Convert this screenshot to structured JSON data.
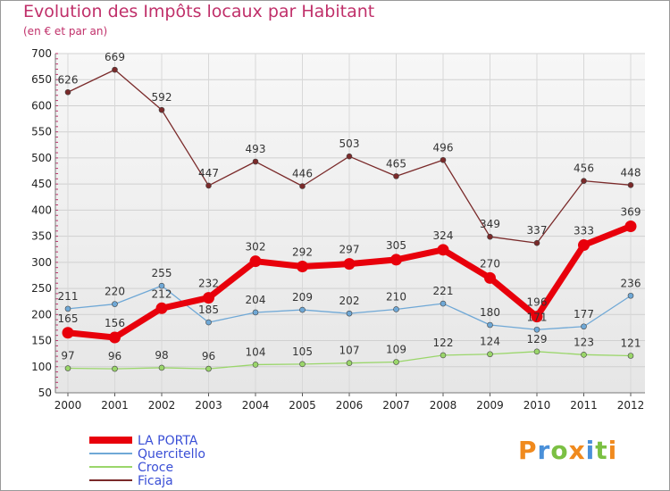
{
  "title": "Evolution des Impôts locaux par Habitant",
  "subtitle": "(en € et par an)",
  "logo_text": "Proxiti",
  "chart_data": {
    "type": "line",
    "x": [
      "2000",
      "2001",
      "2002",
      "2003",
      "2004",
      "2005",
      "2006",
      "2007",
      "2008",
      "2009",
      "2010",
      "2011",
      "2012"
    ],
    "ylim": [
      50,
      700
    ],
    "yticks": [
      50,
      100,
      150,
      200,
      250,
      300,
      350,
      400,
      450,
      500,
      550,
      600,
      650,
      700
    ],
    "grid": true,
    "legend_position": "bottom-left",
    "series": [
      {
        "name": "LA PORTA",
        "color": "#e8000b",
        "values": [
          165,
          156,
          212,
          232,
          302,
          292,
          297,
          305,
          324,
          270,
          196,
          333,
          369
        ]
      },
      {
        "name": "Quercitello",
        "color": "#6fa8d6",
        "values": [
          211,
          220,
          255,
          185,
          204,
          209,
          202,
          210,
          221,
          180,
          171,
          177,
          236
        ]
      },
      {
        "name": "Croce",
        "color": "#9ad66a",
        "values": [
          97,
          96,
          98,
          96,
          104,
          105,
          107,
          109,
          122,
          124,
          129,
          123,
          121
        ]
      },
      {
        "name": "Ficaja",
        "color": "#7a2a2a",
        "values": [
          626,
          669,
          592,
          447,
          493,
          446,
          503,
          465,
          496,
          349,
          337,
          456,
          448
        ]
      }
    ],
    "value_labels": {
      "LA PORTA": [
        "165",
        "156",
        "212",
        "232",
        "302",
        "292",
        "297",
        "305",
        "324",
        "270",
        "196",
        "333",
        "369"
      ],
      "Quercitello": [
        "211",
        "220",
        "255",
        "185",
        "204",
        "209",
        "202",
        "210",
        "221",
        "180",
        "171",
        "177",
        "236"
      ],
      "Croce": [
        "97",
        "96",
        "98",
        "96",
        "104",
        "105",
        "107",
        "109",
        "122",
        "124",
        "129",
        "123",
        "121"
      ],
      "Ficaja": [
        "626",
        "669",
        "592",
        "447",
        "493",
        "446",
        "503",
        "465",
        "496",
        "349",
        "337",
        "456",
        "448"
      ]
    }
  }
}
